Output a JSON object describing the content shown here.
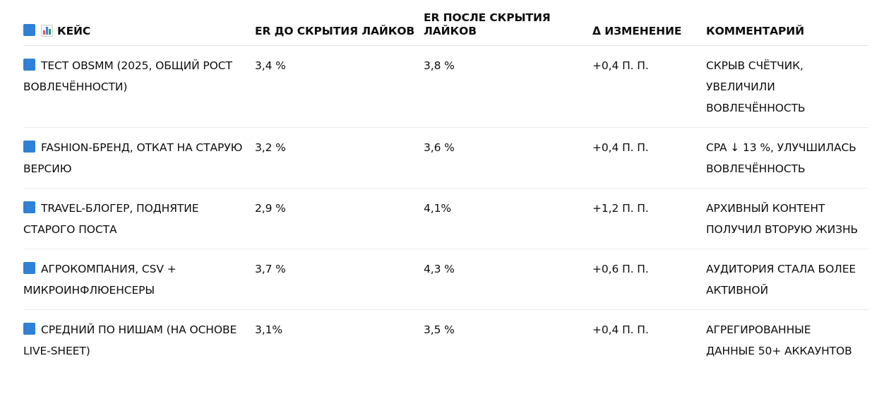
{
  "table": {
    "headers": [
      "КЕЙС",
      "ER ДО СКРЫТИЯ ЛАЙКОВ",
      "ER ПОСЛЕ СКРЫТИЯ ЛАЙКОВ",
      "Δ ИЗМЕНЕНИЕ",
      "КОММЕНТАРИЙ"
    ],
    "header_icons": [
      "blue-square-icon",
      "bar-chart-icon"
    ],
    "row_icon": "blue-square-icon",
    "rows": [
      {
        "case": "ТЕСТ OBSMM (2025, ОБЩИЙ РОСТ ВОВЛЕЧЁННОСТИ)",
        "er_before": "3,4 %",
        "er_after": "3,8 %",
        "delta": "+0,4 П. П.",
        "comment": "СКРЫВ СЧЁТЧИК, УВЕЛИЧИЛИ ВОВЛЕЧЁННОСТЬ"
      },
      {
        "case": "FASHION-БРЕНД, ОТКАТ НА СТАРУЮ ВЕРСИЮ",
        "er_before": "3,2 %",
        "er_after": "3,6 %",
        "delta": "+0,4 П. П.",
        "comment": "CPA ↓ 13 %, УЛУЧШИЛАСЬ ВОВЛЕЧЁННОСТЬ"
      },
      {
        "case": "TRAVEL-БЛОГЕР, ПОДНЯТИЕ СТАРОГО ПОСТА",
        "er_before": "2,9 %",
        "er_after": "4,1%",
        "delta": "+1,2 П. П.",
        "comment": "АРХИВНЫЙ КОНТЕНТ ПОЛУЧИЛ ВТОРУЮ ЖИЗНЬ"
      },
      {
        "case": "АГРОКОМПАНИЯ, CSV + МИКРОИНФЛЮЕНСЕРЫ",
        "er_before": "3,7 %",
        "er_after": "4,3 %",
        "delta": "+0,6 П. П.",
        "comment": "АУДИТОРИЯ СТАЛА БОЛЕЕ АКТИВНОЙ"
      },
      {
        "case": "СРЕДНИЙ ПО НИШАМ (НА ОСНОВЕ LIVE-SHEET)",
        "er_before": "3,1%",
        "er_after": "3,5 %",
        "delta": "+0,4 П. П.",
        "comment": "АГРЕГИРОВАННЫЕ ДАННЫЕ 50+ АККАУНТОВ"
      }
    ]
  },
  "colors": {
    "square_icon": "#2f80d6",
    "text": "#0d0d0d",
    "divider": "#e3e3e3"
  }
}
